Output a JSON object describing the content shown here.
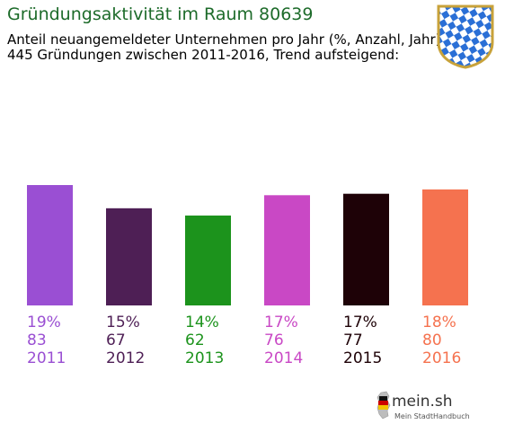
{
  "header": {
    "title": "Gründungsaktivität im Raum 80639",
    "subtitle_line1": "Anteil neuangemeldeter Unternehmen pro Jahr (%, Anzahl, Jahr)",
    "subtitle_line2": "445 Gründungen zwischen 2011-2016, Trend aufsteigend:"
  },
  "crest": {
    "icon": "bavaria-crest-icon",
    "colors": {
      "blue": "#2a6fd6",
      "white": "#ffffff",
      "frame": "#c8a23a"
    }
  },
  "logo": {
    "icon": "germany-map-icon",
    "text": "mein.sh",
    "subtext": "Mein StadtHandbuch"
  },
  "chart_data": {
    "type": "bar",
    "categories": [
      "2011",
      "2012",
      "2013",
      "2014",
      "2015",
      "2016"
    ],
    "percent_labels": [
      "19%",
      "15%",
      "14%",
      "17%",
      "17%",
      "18%"
    ],
    "values": [
      83,
      67,
      62,
      76,
      77,
      80
    ],
    "colors": [
      "#9a4fd3",
      "#4e1f55",
      "#1c931c",
      "#c948c5",
      "#1e0207",
      "#f5724f"
    ],
    "ylim": [
      0,
      83
    ]
  }
}
